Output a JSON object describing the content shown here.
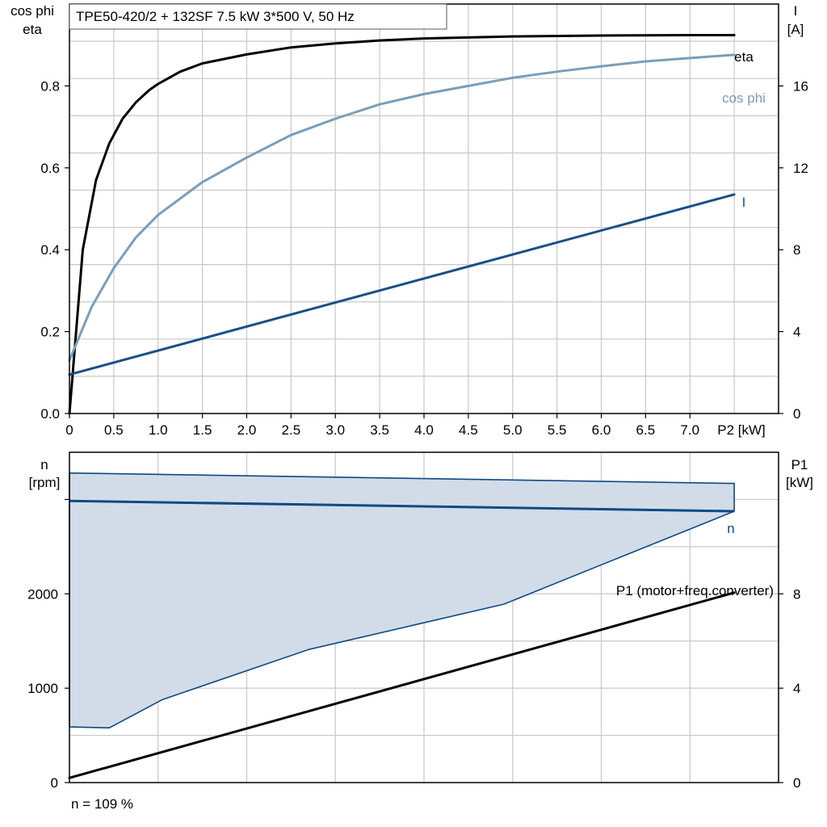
{
  "colors": {
    "eta": "#000000",
    "cos_phi": "#7b9dba",
    "current": "#1b4f86",
    "speed": "#0d4a85",
    "speed_fill": "#d2dce8",
    "p1": "#000000",
    "grid": "#c8c8c8"
  },
  "chart_data": [
    {
      "type": "line",
      "title": "TPE50-420/2 + 132SF   7.5 kW   3*500 V, 50 Hz",
      "xlabel": "P2 [kW]",
      "ylabel_left": [
        "cos phi",
        "eta"
      ],
      "ylabel_right": [
        "I",
        "[A]"
      ],
      "xlim": [
        0,
        8
      ],
      "ylim_left": [
        0,
        1.0
      ],
      "ylim_right": [
        0,
        20
      ],
      "x_ticks": [
        "0",
        "0.5",
        "1.0",
        "1.5",
        "2.0",
        "2.5",
        "3.0",
        "3.5",
        "4.0",
        "4.5",
        "5.0",
        "5.5",
        "6.0",
        "6.5",
        "7.0"
      ],
      "x_tick_values": [
        0,
        0.5,
        1.0,
        1.5,
        2.0,
        2.5,
        3.0,
        3.5,
        4.0,
        4.5,
        5.0,
        5.5,
        6.0,
        6.5,
        7.0
      ],
      "y_ticks_left": [
        "0.0",
        "0.2",
        "0.4",
        "0.6",
        "0.8"
      ],
      "y_tick_values_left": [
        0,
        0.2,
        0.4,
        0.6,
        0.8
      ],
      "y_ticks_right": [
        "0",
        "4",
        "8",
        "12",
        "16"
      ],
      "y_tick_values_right": [
        0,
        4,
        8,
        12,
        16
      ],
      "grid": true,
      "series": [
        {
          "name": "eta",
          "axis": "left",
          "x": [
            0,
            0.15,
            0.3,
            0.45,
            0.6,
            0.75,
            0.9,
            1.0,
            1.25,
            1.5,
            2.0,
            2.5,
            3.0,
            3.5,
            4.0,
            5.0,
            6.0,
            7.0,
            7.5
          ],
          "y": [
            0,
            0.4,
            0.57,
            0.66,
            0.72,
            0.76,
            0.79,
            0.805,
            0.835,
            0.855,
            0.877,
            0.894,
            0.904,
            0.911,
            0.916,
            0.921,
            0.923,
            0.924,
            0.924
          ]
        },
        {
          "name": "cos phi",
          "axis": "left",
          "x": [
            0,
            0.25,
            0.5,
            0.75,
            1.0,
            1.5,
            2.0,
            2.5,
            3.0,
            3.5,
            4.0,
            4.5,
            5.0,
            5.5,
            6.0,
            6.5,
            7.0,
            7.5
          ],
          "y": [
            0.13,
            0.26,
            0.355,
            0.43,
            0.485,
            0.565,
            0.625,
            0.68,
            0.72,
            0.755,
            0.78,
            0.8,
            0.82,
            0.835,
            0.848,
            0.86,
            0.868,
            0.876
          ]
        },
        {
          "name": "I",
          "axis": "right",
          "x": [
            0,
            7.5
          ],
          "y": [
            1.9,
            10.7
          ]
        }
      ]
    },
    {
      "type": "area",
      "ylabel_left": [
        "n",
        "[rpm]"
      ],
      "ylabel_right": [
        "P1",
        "[kW]"
      ],
      "xlim": [
        0,
        8
      ],
      "ylim_left": [
        0,
        3500
      ],
      "ylim_right": [
        0,
        14
      ],
      "y_ticks_left": [
        "0",
        "1000",
        "2000"
      ],
      "y_tick_values_left": [
        0,
        1000,
        2000
      ],
      "y_ticks_right": [
        "0",
        "4",
        "8"
      ],
      "y_tick_values_right": [
        0,
        4,
        8
      ],
      "grid": true,
      "speed_range": {
        "name": "n",
        "upper": {
          "x": [
            0,
            7.5
          ],
          "y": [
            3280,
            3170
          ]
        },
        "nominal": {
          "x": [
            0,
            7.5
          ],
          "y": [
            2985,
            2875
          ]
        },
        "lower": {
          "x": [
            0,
            0.45,
            1.05,
            2.7,
            4.9,
            7.5
          ],
          "y": [
            590,
            580,
            880,
            1410,
            1890,
            2875
          ]
        }
      },
      "series": [
        {
          "name": "P1 (motor+freq.converter)",
          "axis": "right",
          "x": [
            0,
            7.5
          ],
          "y": [
            0.2,
            8.05
          ]
        }
      ]
    }
  ],
  "footer": {
    "note": "n = 109 %"
  }
}
